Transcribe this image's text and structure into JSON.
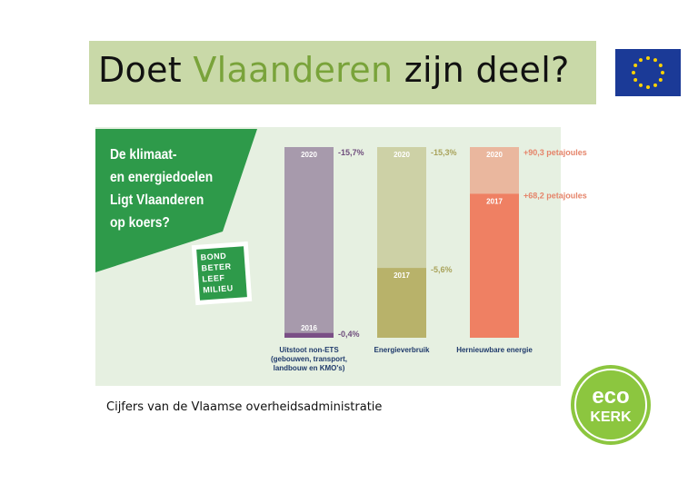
{
  "slide": {
    "title_part1": "Doet ",
    "title_highlight": "Vlaanderen",
    "title_part2": " zijn deel?",
    "caption": "Cijfers van de Vlaamse overheidsadministratie"
  },
  "infographic": {
    "question_lines": [
      "De klimaat-",
      "en energiedoelen",
      "Ligt Vlaanderen",
      "op koers?"
    ],
    "logo_lines": [
      "BOND",
      "BETER",
      "LEEF",
      "MILIEU"
    ]
  },
  "eco_logo": {
    "line1": "eco",
    "line2": "KERK"
  },
  "colors": {
    "title_bar": "#c9d9a8",
    "title_highlight": "#79a33a",
    "panel": "#e6f0e1",
    "green": "#2e9a4a"
  },
  "chart_data": {
    "type": "bar",
    "ylim": [
      0,
      100
    ],
    "bars": [
      {
        "category": "Uitstoot non-ETS\n(gebouwen, transport,\nlandbouw en KMO's)",
        "target_label": "2020",
        "target_value_label": "-15,7%",
        "target_fraction": 1.0,
        "actual_label": "2016",
        "actual_value_label": "-0,4%",
        "actual_fraction": 0.025,
        "light_color": "#a79aac",
        "dark_color": "#7a4f86",
        "text_color": "#6f4d7c"
      },
      {
        "category": "Energieverbruik",
        "target_label": "2020",
        "target_value_label": "-15,3%",
        "target_fraction": 1.0,
        "actual_label": "2017",
        "actual_value_label": "-5,6%",
        "actual_fraction": 0.366,
        "light_color": "#cdd1a6",
        "dark_color": "#b8b26a",
        "text_color": "#a9a35b"
      },
      {
        "category": "Hernieuwbare energie",
        "target_label": "2020",
        "target_value_label": "+90,3 petajoules",
        "target_fraction": 1.0,
        "actual_label": "2017",
        "actual_value_label": "+68,2 petajoules",
        "actual_fraction": 0.755,
        "light_color": "#eab79e",
        "dark_color": "#ef8063",
        "text_color": "#e5846a"
      }
    ]
  }
}
